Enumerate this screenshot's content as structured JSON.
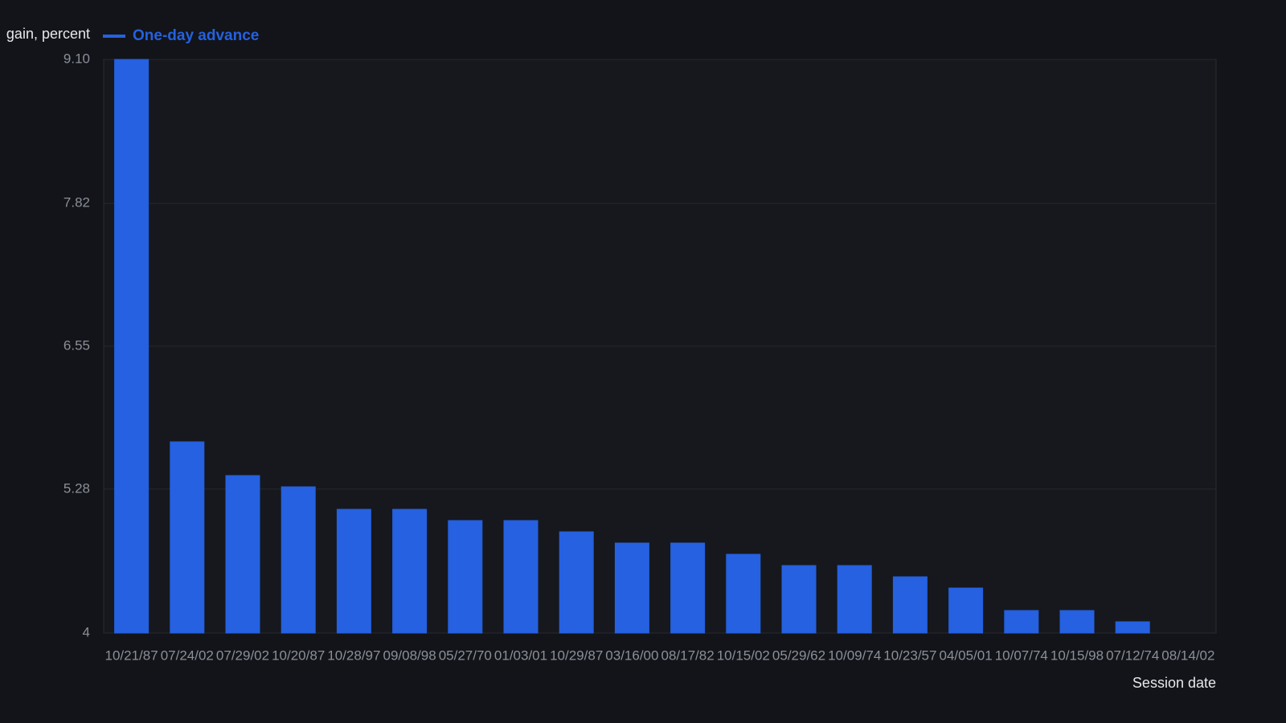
{
  "chart_data": {
    "type": "bar",
    "y_label": "gain, percent",
    "x_label": "Session date",
    "categories": [
      "10/21/87",
      "07/24/02",
      "07/29/02",
      "10/20/87",
      "10/28/97",
      "09/08/98",
      "05/27/70",
      "01/03/01",
      "10/29/87",
      "03/16/00",
      "08/17/82",
      "10/15/02",
      "05/29/62",
      "10/09/74",
      "10/23/57",
      "04/05/01",
      "10/07/74",
      "10/15/98",
      "07/12/74",
      "08/14/02"
    ],
    "series": [
      {
        "name": "One-day advance",
        "color": "#2561e0",
        "values": [
          9.1,
          5.7,
          5.4,
          5.3,
          5.1,
          5.1,
          5.0,
          5.0,
          4.9,
          4.8,
          4.8,
          4.7,
          4.6,
          4.6,
          4.5,
          4.4,
          4.2,
          4.2,
          4.1,
          4.0
        ]
      }
    ],
    "ylim": [
      4,
      9.1
    ],
    "yticks": [
      4,
      5.28,
      6.55,
      7.82,
      {
        "value": 9.1,
        "label": "9.10"
      }
    ],
    "grid": true
  }
}
